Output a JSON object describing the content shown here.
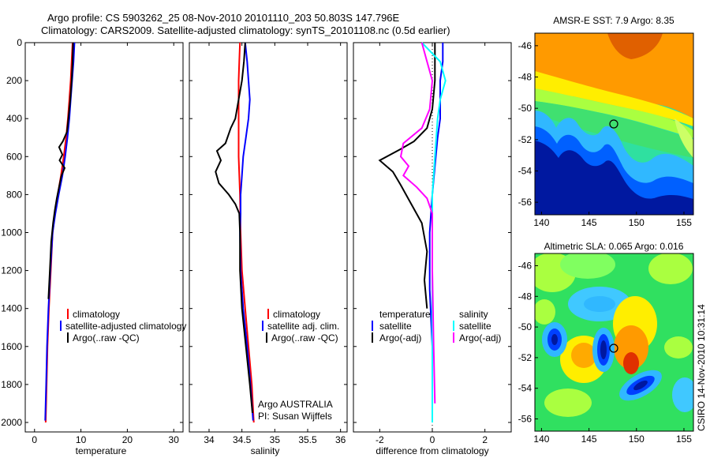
{
  "header": {
    "line1": "Argo profile: CS 5903262_25 08-Nov-2010 20101110_203 50.803S 147.796E",
    "line2": "Climatology: CARS2009. Satellite-adjusted climatology: synTS_20101108.nc (0.5d earlier)"
  },
  "side_label": "CSIRO 14-Nov-2010 10:31:14",
  "colors": {
    "red": "#ff0000",
    "blue": "#0000ff",
    "black": "#000000",
    "cyan": "#00ffff",
    "magenta": "#ff00ff"
  },
  "chart_data": [
    {
      "type": "line",
      "name": "temperature-panel",
      "xlabel": "temperature",
      "xlim": [
        -2,
        32
      ],
      "ylim": [
        0,
        2050
      ],
      "y_reversed": true,
      "xticks": [
        0,
        10,
        20,
        30
      ],
      "yticks": [
        0,
        200,
        400,
        600,
        800,
        1000,
        1200,
        1400,
        1600,
        1800,
        2000
      ],
      "legend": {
        "placement": "lower-right",
        "entries": [
          "climatology",
          "satellite-adjusted climatology",
          "Argo(..raw -QC)"
        ]
      },
      "series": [
        {
          "name": "climatology",
          "color": "red",
          "points": [
            [
              8.2,
              0
            ],
            [
              8.0,
              100
            ],
            [
              7.8,
              200
            ],
            [
              7.5,
              300
            ],
            [
              7.2,
              400
            ],
            [
              6.8,
              500
            ],
            [
              6.3,
              600
            ],
            [
              5.7,
              700
            ],
            [
              5.0,
              800
            ],
            [
              4.4,
              900
            ],
            [
              3.9,
              1000
            ],
            [
              3.5,
              1200
            ],
            [
              3.1,
              1400
            ],
            [
              2.8,
              1600
            ],
            [
              2.6,
              1800
            ],
            [
              2.4,
              2000
            ]
          ]
        },
        {
          "name": "satellite-adjusted climatology",
          "color": "blue",
          "points": [
            [
              8.6,
              0
            ],
            [
              8.4,
              100
            ],
            [
              8.1,
              200
            ],
            [
              7.8,
              300
            ],
            [
              7.5,
              400
            ],
            [
              7.1,
              500
            ],
            [
              6.6,
              600
            ],
            [
              6.0,
              700
            ],
            [
              5.2,
              800
            ],
            [
              4.5,
              900
            ],
            [
              3.9,
              1000
            ],
            [
              3.4,
              1200
            ],
            [
              3.0,
              1400
            ],
            [
              2.7,
              1600
            ],
            [
              2.5,
              1800
            ],
            [
              2.3,
              1990
            ]
          ]
        },
        {
          "name": "Argo(..raw -QC)",
          "color": "black",
          "points": [
            [
              8.3,
              0
            ],
            [
              8.2,
              100
            ],
            [
              8.0,
              200
            ],
            [
              7.7,
              300
            ],
            [
              7.3,
              400
            ],
            [
              7.0,
              470
            ],
            [
              6.1,
              520
            ],
            [
              5.3,
              550
            ],
            [
              6.0,
              590
            ],
            [
              5.4,
              620
            ],
            [
              6.5,
              660
            ],
            [
              5.8,
              700
            ],
            [
              5.3,
              760
            ],
            [
              4.8,
              820
            ],
            [
              4.4,
              880
            ],
            [
              4.0,
              950
            ],
            [
              3.6,
              1050
            ],
            [
              3.3,
              1200
            ],
            [
              3.0,
              1350
            ]
          ]
        }
      ]
    },
    {
      "type": "line",
      "name": "salinity-panel",
      "xlabel": "salinity",
      "xlim": [
        33.7,
        36.1
      ],
      "ylim": [
        0,
        2050
      ],
      "y_reversed": true,
      "xticks": [
        34,
        34.5,
        35,
        35.5,
        36
      ],
      "legend": {
        "placement": "lower-right",
        "entries": [
          "climatology",
          "satellite adj. clim.",
          "Argo(..raw -QC)"
        ]
      },
      "annotation": [
        "Argo AUSTRALIA",
        "PI: Susan Wijffels"
      ],
      "series": [
        {
          "name": "climatology",
          "color": "red",
          "points": [
            [
              34.47,
              0
            ],
            [
              34.46,
              100
            ],
            [
              34.45,
              200
            ],
            [
              34.45,
              400
            ],
            [
              34.45,
              600
            ],
            [
              34.47,
              800
            ],
            [
              34.48,
              1000
            ],
            [
              34.5,
              1200
            ],
            [
              34.55,
              1400
            ],
            [
              34.6,
              1600
            ],
            [
              34.65,
              1800
            ],
            [
              34.68,
              2000
            ]
          ]
        },
        {
          "name": "satellite adj. clim.",
          "color": "blue",
          "points": [
            [
              34.55,
              0
            ],
            [
              34.58,
              100
            ],
            [
              34.6,
              200
            ],
            [
              34.62,
              300
            ],
            [
              34.6,
              400
            ],
            [
              34.56,
              500
            ],
            [
              34.52,
              600
            ],
            [
              34.5,
              700
            ],
            [
              34.48,
              800
            ],
            [
              34.48,
              900
            ],
            [
              34.47,
              1000
            ],
            [
              34.48,
              1200
            ],
            [
              34.52,
              1400
            ],
            [
              34.58,
              1600
            ],
            [
              34.63,
              1800
            ],
            [
              34.67,
              1990
            ]
          ]
        },
        {
          "name": "Argo(..raw -QC)",
          "color": "black",
          "points": [
            [
              34.55,
              0
            ],
            [
              34.53,
              100
            ],
            [
              34.5,
              200
            ],
            [
              34.45,
              300
            ],
            [
              34.4,
              400
            ],
            [
              34.33,
              450
            ],
            [
              34.25,
              530
            ],
            [
              34.12,
              570
            ],
            [
              34.18,
              620
            ],
            [
              34.1,
              680
            ],
            [
              34.15,
              740
            ],
            [
              34.3,
              800
            ],
            [
              34.4,
              850
            ],
            [
              34.46,
              900
            ],
            [
              34.47,
              1000
            ],
            [
              34.47,
              1200
            ],
            [
              34.5,
              1400
            ],
            [
              34.56,
              1600
            ],
            [
              34.62,
              1800
            ],
            [
              34.66,
              1950
            ]
          ]
        }
      ]
    },
    {
      "type": "line",
      "name": "difference-panel",
      "xlabel": "difference from climatology",
      "xlim": [
        -3,
        3
      ],
      "ylim": [
        0,
        2050
      ],
      "y_reversed": true,
      "xticks": [
        -2,
        0,
        2
      ],
      "legend": {
        "placement": "lower-center",
        "col1_title": "temperature",
        "col2_title": "salinity",
        "entries": [
          "satellite",
          "Argo(-adj)",
          "satellite",
          "Argo(-adj)"
        ]
      },
      "series": [
        {
          "name": "temperature satellite",
          "color": "blue",
          "points": [
            [
              0.4,
              0
            ],
            [
              0.4,
              100
            ],
            [
              0.3,
              200
            ],
            [
              0.3,
              300
            ],
            [
              0.3,
              400
            ],
            [
              0.2,
              500
            ],
            [
              0.1,
              650
            ],
            [
              0.0,
              800
            ],
            [
              -0.1,
              1000
            ],
            [
              -0.1,
              1300
            ],
            [
              0.0,
              1600
            ],
            [
              0.0,
              2000
            ]
          ]
        },
        {
          "name": "temperature Argo(-adj)",
          "color": "black",
          "points": [
            [
              0.1,
              0
            ],
            [
              0.1,
              200
            ],
            [
              0.0,
              350
            ],
            [
              -0.2,
              450
            ],
            [
              -0.7,
              520
            ],
            [
              -1.2,
              560
            ],
            [
              -2.0,
              620
            ],
            [
              -1.5,
              680
            ],
            [
              -1.2,
              750
            ],
            [
              -0.8,
              850
            ],
            [
              -0.4,
              950
            ],
            [
              -0.2,
              1100
            ],
            [
              -0.3,
              1250
            ],
            [
              -0.2,
              1400
            ]
          ]
        },
        {
          "name": "salinity satellite",
          "color": "cyan",
          "points": [
            [
              -0.4,
              0
            ],
            [
              0.3,
              100
            ],
            [
              0.5,
              200
            ],
            [
              0.3,
              300
            ],
            [
              0.2,
              400
            ],
            [
              0.1,
              600
            ],
            [
              0.0,
              800
            ],
            [
              0.0,
              1000
            ],
            [
              0.0,
              1400
            ],
            [
              0.0,
              2000
            ]
          ]
        },
        {
          "name": "salinity Argo(-adj)",
          "color": "magenta",
          "points": [
            [
              -0.4,
              0
            ],
            [
              -0.2,
              100
            ],
            [
              0.0,
              200
            ],
            [
              -0.1,
              350
            ],
            [
              -0.4,
              450
            ],
            [
              -1.1,
              530
            ],
            [
              -1.2,
              600
            ],
            [
              -0.9,
              650
            ],
            [
              -1.1,
              700
            ],
            [
              -0.6,
              760
            ],
            [
              -0.2,
              820
            ],
            [
              0.0,
              900
            ],
            [
              0.0,
              1200
            ],
            [
              0.05,
              1600
            ],
            [
              0.1,
              1900
            ]
          ]
        }
      ]
    },
    {
      "type": "heatmap",
      "name": "amsre-sst-map",
      "title": "AMSR-E SST: 7.9 Argo: 8.35",
      "xticks": [
        "140",
        "145",
        "150",
        "155"
      ],
      "yticks": [
        "-46",
        "-48",
        "-50",
        "-52",
        "-54",
        "-56"
      ],
      "marker": {
        "lon": 147.8,
        "lat": -50.8
      }
    },
    {
      "type": "heatmap",
      "name": "altimetric-sla-map",
      "title": "Altimetric SLA: 0.065 Argo: 0.016",
      "xticks": [
        "140",
        "145",
        "150",
        "155"
      ],
      "yticks": [
        "-46",
        "-48",
        "-50",
        "-52",
        "-54",
        "-56"
      ],
      "marker": {
        "lon": 147.8,
        "lat": -50.8
      }
    }
  ]
}
